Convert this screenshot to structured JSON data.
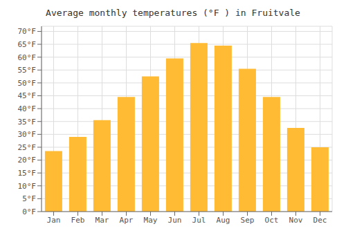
{
  "chart_data": {
    "type": "bar",
    "title": "Average monthly temperatures (°F ) in Fruitvale",
    "categories": [
      "Jan",
      "Feb",
      "Mar",
      "Apr",
      "May",
      "Jun",
      "Jul",
      "Aug",
      "Sep",
      "Oct",
      "Nov",
      "Dec"
    ],
    "values": [
      23.5,
      29.0,
      35.5,
      44.5,
      52.5,
      59.5,
      65.5,
      64.5,
      55.5,
      44.5,
      32.5,
      25.0
    ],
    "color": "#FFBB33",
    "ylim": [
      0,
      72
    ],
    "yticks": [
      {
        "value": 0,
        "label": "0°F"
      },
      {
        "value": 5,
        "label": "5°F"
      },
      {
        "value": 10,
        "label": "10°F"
      },
      {
        "value": 15,
        "label": "15°F"
      },
      {
        "value": 20,
        "label": "20°F"
      },
      {
        "value": 25,
        "label": "25°F"
      },
      {
        "value": 30,
        "label": "30°F"
      },
      {
        "value": 35,
        "label": "35°F"
      },
      {
        "value": 40,
        "label": "40°F"
      },
      {
        "value": 45,
        "label": "45°F"
      },
      {
        "value": 50,
        "label": "50°F"
      },
      {
        "value": 55,
        "label": "55°F"
      },
      {
        "value": 60,
        "label": "60°F"
      },
      {
        "value": 65,
        "label": "65°F"
      },
      {
        "value": 70,
        "label": "70°F"
      }
    ],
    "grid": true
  }
}
